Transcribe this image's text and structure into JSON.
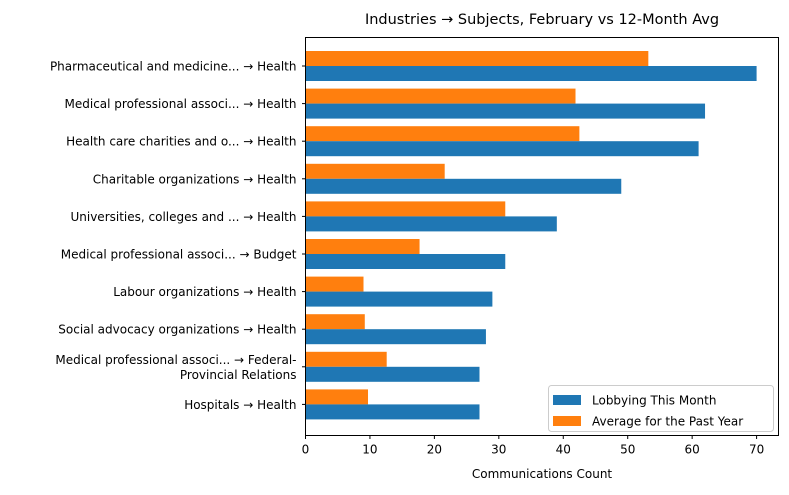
{
  "chart_data": {
    "type": "bar",
    "orientation": "horizontal",
    "title": "Industries → Subjects, February vs 12-Month Avg",
    "xlabel": "Communications Count",
    "ylabel": "",
    "xlim": [
      0,
      73.4
    ],
    "xticks": [
      "0",
      "10",
      "20",
      "30",
      "40",
      "50",
      "60",
      "70"
    ],
    "grid": false,
    "legend_position": "lower-right",
    "categories": [
      [
        "Pharmaceutical and medicine... → Health"
      ],
      [
        "Medical professional associ... → Health"
      ],
      [
        "Health care charities and o... → Health"
      ],
      [
        "Charitable organizations → Health"
      ],
      [
        "Universities, colleges and ... → Health"
      ],
      [
        "Medical professional associ... → Budget"
      ],
      [
        "Labour organizations → Health"
      ],
      [
        "Social advocacy organizations → Health"
      ],
      [
        "Medical professional associ... → Federal-",
        "Provincial Relations"
      ],
      [
        "Hospitals → Health"
      ]
    ],
    "series": [
      {
        "name": "Lobbying This Month",
        "color": "#1f77b4",
        "values": [
          70,
          62,
          61,
          49,
          39,
          31,
          29,
          28,
          27,
          27
        ]
      },
      {
        "name": "Average for the Past Year",
        "color": "#ff7f0e",
        "values": [
          53.2,
          41.9,
          42.5,
          21.6,
          31.0,
          17.7,
          9.0,
          9.2,
          12.6,
          9.7
        ]
      }
    ]
  }
}
